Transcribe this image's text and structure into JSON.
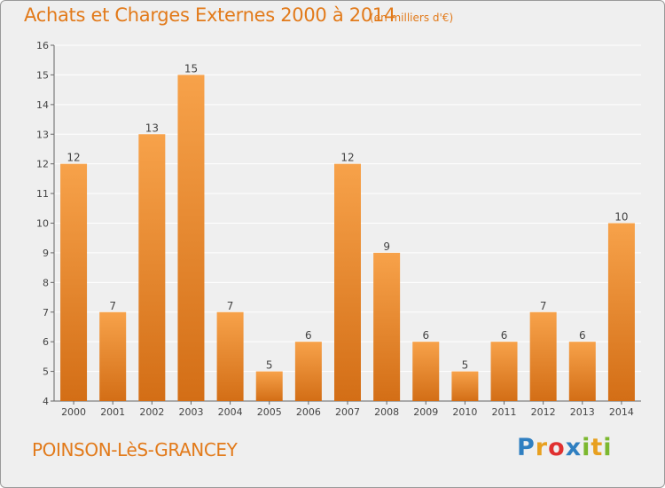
{
  "title": "Achats et Charges Externes 2000 à 2014",
  "subtitle": "(en milliers d'€)",
  "commune": "POINSON-LèS-GRANCEY",
  "logo": {
    "letters": [
      "P",
      "r",
      "o",
      "x",
      "i",
      "t",
      "i"
    ],
    "colors": [
      "#2f7fc1",
      "#e8a020",
      "#e03030",
      "#2f7fc1",
      "#7cb82f",
      "#e8a020",
      "#7cb82f"
    ]
  },
  "colors": {
    "accent": "#e27a1a",
    "bar_top": "#f7a24a",
    "bar_bottom": "#d36e16",
    "background": "#efefef",
    "grid": "#ffffff"
  },
  "chart_data": {
    "type": "bar",
    "categories": [
      "2000",
      "2001",
      "2002",
      "2003",
      "2004",
      "2005",
      "2006",
      "2007",
      "2008",
      "2009",
      "2010",
      "2011",
      "2012",
      "2013",
      "2014"
    ],
    "values": [
      12,
      7,
      13,
      15,
      7,
      5,
      6,
      12,
      9,
      6,
      5,
      6,
      7,
      6,
      10
    ],
    "ylim": [
      4,
      16
    ],
    "yticks": [
      4,
      5,
      6,
      7,
      8,
      9,
      10,
      11,
      12,
      13,
      14,
      15,
      16
    ],
    "grid": true,
    "xlabel": "",
    "ylabel": ""
  }
}
